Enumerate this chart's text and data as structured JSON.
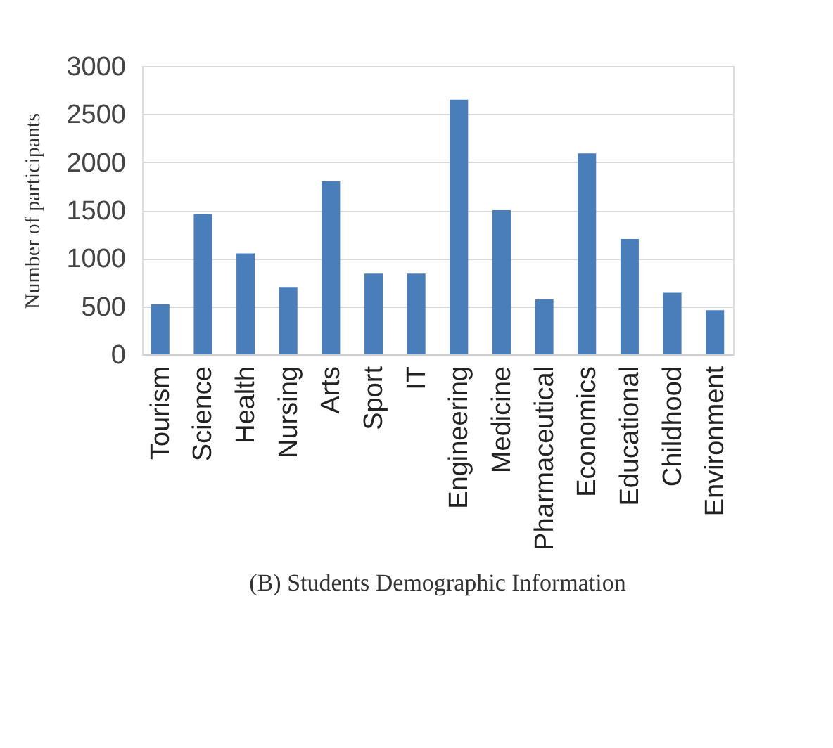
{
  "chart_data": {
    "type": "bar",
    "title": "(B) Students Demographic Information",
    "ylabel": "Number of participants",
    "categories": [
      "Tourism",
      "Science",
      "Health",
      "Nursing",
      "Arts",
      "Sport",
      "IT",
      "Engineering",
      "Medicine",
      "Pharmaceutical",
      "Economics",
      "Educational",
      "Childhood",
      "Environment"
    ],
    "values": [
      520,
      1460,
      1050,
      700,
      1800,
      840,
      840,
      2650,
      1500,
      570,
      2090,
      1200,
      640,
      460
    ],
    "color": "#4a7ebb",
    "ylim": [
      0,
      3000
    ],
    "yticks": [
      0,
      500,
      1000,
      1500,
      2000,
      2500,
      3000
    ],
    "grid": "y"
  }
}
